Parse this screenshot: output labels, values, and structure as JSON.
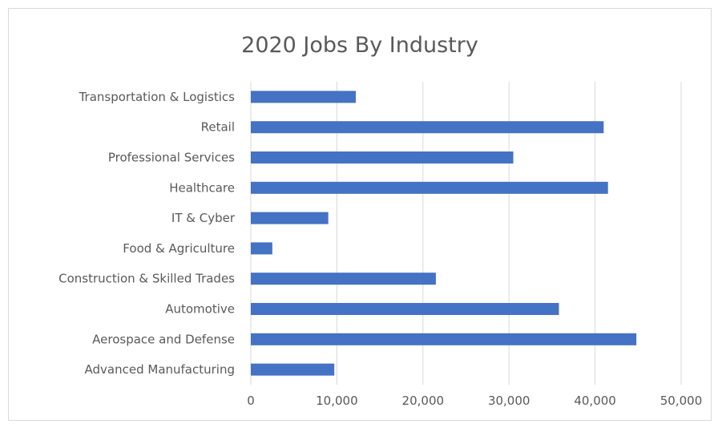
{
  "chart_data": {
    "type": "bar",
    "orientation": "horizontal",
    "title": "2020 Jobs By Industry",
    "categories": [
      "Transportation & Logistics",
      "Retail",
      "Professional Services",
      "Healthcare",
      "IT & Cyber",
      "Food & Agriculture",
      "Construction & Skilled Trades",
      "Automotive",
      "Aerospace and Defense",
      "Advanced Manufacturing"
    ],
    "values": [
      12200,
      41000,
      30500,
      41500,
      9000,
      2500,
      21500,
      35800,
      44800,
      9700
    ],
    "xlim": [
      0,
      50000
    ],
    "xticks": [
      0,
      10000,
      20000,
      30000,
      40000,
      50000
    ],
    "xtick_labels": [
      "0",
      "10,000",
      "20,000",
      "30,000",
      "40,000",
      "50,000"
    ],
    "gridlines": "vertical",
    "legend": "none",
    "bar_color": "#4472c4",
    "grid_color": "#d9d9d9"
  }
}
